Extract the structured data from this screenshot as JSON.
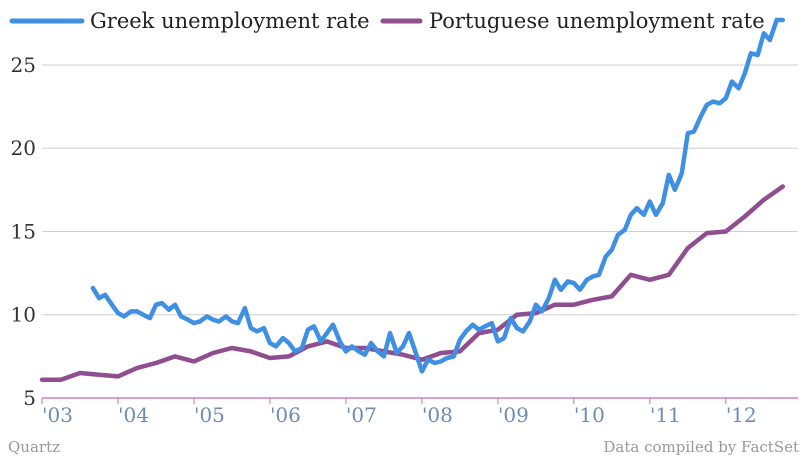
{
  "chart_data": {
    "type": "line",
    "title": "",
    "xlabel": "",
    "ylabel": "",
    "ylim": [
      5,
      28
    ],
    "yticks": [
      5,
      10,
      15,
      20,
      25
    ],
    "xlim": [
      2003.0,
      2012.95
    ],
    "xticks": [
      {
        "value": 2003,
        "label": "'03"
      },
      {
        "value": 2004,
        "label": "'04"
      },
      {
        "value": 2005,
        "label": "'05"
      },
      {
        "value": 2006,
        "label": "'06"
      },
      {
        "value": 2007,
        "label": "'07"
      },
      {
        "value": 2008,
        "label": "'08"
      },
      {
        "value": 2009,
        "label": "'09"
      },
      {
        "value": 2010,
        "label": "'10"
      },
      {
        "value": 2011,
        "label": "'11"
      },
      {
        "value": 2012,
        "label": "'12"
      }
    ],
    "grid": "horizontal",
    "legend_position": "top-left",
    "series": [
      {
        "name": "Greek unemployment rate",
        "color": "#3f8fe3",
        "points": [
          [
            2003.67,
            11.6
          ],
          [
            2003.75,
            11.0
          ],
          [
            2003.83,
            11.2
          ],
          [
            2003.92,
            10.6
          ],
          [
            2004.0,
            10.1
          ],
          [
            2004.08,
            9.9
          ],
          [
            2004.17,
            10.2
          ],
          [
            2004.25,
            10.2
          ],
          [
            2004.33,
            10.0
          ],
          [
            2004.42,
            9.8
          ],
          [
            2004.5,
            10.6
          ],
          [
            2004.58,
            10.7
          ],
          [
            2004.67,
            10.3
          ],
          [
            2004.75,
            10.6
          ],
          [
            2004.83,
            9.9
          ],
          [
            2004.92,
            9.7
          ],
          [
            2005.0,
            9.5
          ],
          [
            2005.08,
            9.6
          ],
          [
            2005.17,
            9.9
          ],
          [
            2005.25,
            9.7
          ],
          [
            2005.33,
            9.6
          ],
          [
            2005.42,
            9.9
          ],
          [
            2005.5,
            9.6
          ],
          [
            2005.58,
            9.5
          ],
          [
            2005.67,
            10.4
          ],
          [
            2005.75,
            9.2
          ],
          [
            2005.83,
            9.0
          ],
          [
            2005.92,
            9.2
          ],
          [
            2006.0,
            8.3
          ],
          [
            2006.08,
            8.1
          ],
          [
            2006.17,
            8.6
          ],
          [
            2006.25,
            8.3
          ],
          [
            2006.33,
            7.8
          ],
          [
            2006.42,
            8.0
          ],
          [
            2006.5,
            9.1
          ],
          [
            2006.58,
            9.3
          ],
          [
            2006.67,
            8.4
          ],
          [
            2006.75,
            8.9
          ],
          [
            2006.83,
            9.4
          ],
          [
            2006.92,
            8.4
          ],
          [
            2007.0,
            7.8
          ],
          [
            2007.08,
            8.1
          ],
          [
            2007.17,
            7.8
          ],
          [
            2007.25,
            7.6
          ],
          [
            2007.33,
            8.3
          ],
          [
            2007.42,
            7.8
          ],
          [
            2007.5,
            7.5
          ],
          [
            2007.58,
            8.9
          ],
          [
            2007.67,
            7.7
          ],
          [
            2007.75,
            8.1
          ],
          [
            2007.83,
            8.9
          ],
          [
            2007.92,
            7.7
          ],
          [
            2008.0,
            6.6
          ],
          [
            2008.08,
            7.3
          ],
          [
            2008.17,
            7.1
          ],
          [
            2008.25,
            7.2
          ],
          [
            2008.33,
            7.4
          ],
          [
            2008.42,
            7.5
          ],
          [
            2008.5,
            8.5
          ],
          [
            2008.58,
            9.0
          ],
          [
            2008.67,
            9.4
          ],
          [
            2008.75,
            9.1
          ],
          [
            2008.83,
            9.3
          ],
          [
            2008.92,
            9.5
          ],
          [
            2009.0,
            8.4
          ],
          [
            2009.08,
            8.6
          ],
          [
            2009.17,
            9.8
          ],
          [
            2009.25,
            9.2
          ],
          [
            2009.33,
            9.0
          ],
          [
            2009.42,
            9.6
          ],
          [
            2009.5,
            10.6
          ],
          [
            2009.58,
            10.2
          ],
          [
            2009.67,
            11.0
          ],
          [
            2009.75,
            12.1
          ],
          [
            2009.83,
            11.5
          ],
          [
            2009.92,
            12.0
          ],
          [
            2010.0,
            11.9
          ],
          [
            2010.08,
            11.5
          ],
          [
            2010.17,
            12.1
          ],
          [
            2010.25,
            12.3
          ],
          [
            2010.33,
            12.4
          ],
          [
            2010.42,
            13.5
          ],
          [
            2010.5,
            13.9
          ],
          [
            2010.58,
            14.8
          ],
          [
            2010.67,
            15.1
          ],
          [
            2010.75,
            16.0
          ],
          [
            2010.83,
            16.4
          ],
          [
            2010.92,
            16.0
          ],
          [
            2011.0,
            16.8
          ],
          [
            2011.08,
            16.0
          ],
          [
            2011.17,
            16.7
          ],
          [
            2011.25,
            18.4
          ],
          [
            2011.33,
            17.5
          ],
          [
            2011.42,
            18.5
          ],
          [
            2011.5,
            20.9
          ],
          [
            2011.58,
            21.0
          ],
          [
            2011.67,
            21.9
          ],
          [
            2011.75,
            22.6
          ],
          [
            2011.83,
            22.8
          ],
          [
            2011.92,
            22.7
          ],
          [
            2012.0,
            23.0
          ],
          [
            2012.08,
            24.0
          ],
          [
            2012.17,
            23.6
          ],
          [
            2012.25,
            24.5
          ],
          [
            2012.33,
            25.7
          ],
          [
            2012.42,
            25.6
          ],
          [
            2012.5,
            26.9
          ],
          [
            2012.58,
            26.5
          ],
          [
            2012.67,
            27.7
          ],
          [
            2012.75,
            27.7
          ]
        ]
      },
      {
        "name": "Portuguese unemployment rate",
        "color": "#8e4e90",
        "points": [
          [
            2003.0,
            6.1
          ],
          [
            2003.25,
            6.1
          ],
          [
            2003.5,
            6.5
          ],
          [
            2003.75,
            6.4
          ],
          [
            2004.0,
            6.3
          ],
          [
            2004.25,
            6.8
          ],
          [
            2004.5,
            7.1
          ],
          [
            2004.75,
            7.5
          ],
          [
            2005.0,
            7.2
          ],
          [
            2005.25,
            7.7
          ],
          [
            2005.5,
            8.0
          ],
          [
            2005.75,
            7.8
          ],
          [
            2006.0,
            7.4
          ],
          [
            2006.25,
            7.5
          ],
          [
            2006.5,
            8.1
          ],
          [
            2006.75,
            8.4
          ],
          [
            2007.0,
            8.0
          ],
          [
            2007.25,
            8.0
          ],
          [
            2007.5,
            7.8
          ],
          [
            2007.75,
            7.6
          ],
          [
            2008.0,
            7.3
          ],
          [
            2008.25,
            7.7
          ],
          [
            2008.5,
            7.8
          ],
          [
            2008.75,
            8.9
          ],
          [
            2009.0,
            9.1
          ],
          [
            2009.25,
            10.0
          ],
          [
            2009.5,
            10.1
          ],
          [
            2009.75,
            10.6
          ],
          [
            2010.0,
            10.6
          ],
          [
            2010.25,
            10.9
          ],
          [
            2010.5,
            11.1
          ],
          [
            2010.75,
            12.4
          ],
          [
            2011.0,
            12.1
          ],
          [
            2011.25,
            12.4
          ],
          [
            2011.5,
            14.0
          ],
          [
            2011.75,
            14.9
          ],
          [
            2012.0,
            15.0
          ],
          [
            2012.25,
            15.9
          ],
          [
            2012.5,
            16.9
          ],
          [
            2012.75,
            17.7
          ]
        ]
      }
    ]
  },
  "footer": {
    "source_left": "Quartz",
    "source_right": "Data compiled by FactSet"
  }
}
